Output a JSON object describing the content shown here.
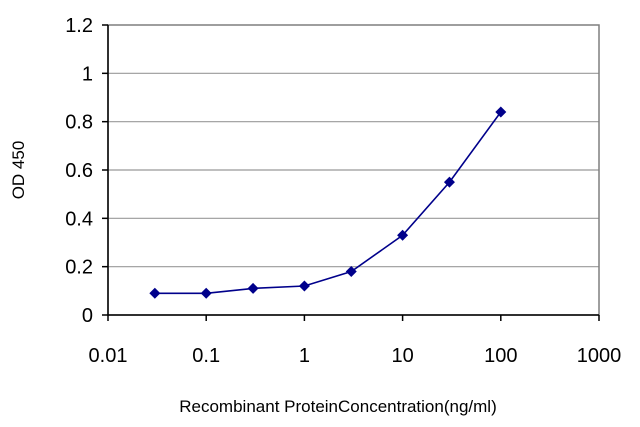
{
  "chart_data": {
    "type": "line",
    "title": "",
    "xlabel": "Recombinant ProteinConcentration(ng/ml)",
    "ylabel": "OD 450",
    "x_scale": "log",
    "xlim": [
      0.01,
      1000
    ],
    "ylim": [
      0,
      1.2
    ],
    "x_ticks": [
      0.01,
      0.1,
      1,
      10,
      100,
      1000
    ],
    "x_tick_labels": [
      "0.01",
      "0.1",
      "1",
      "10",
      "100",
      "1000"
    ],
    "y_ticks": [
      0,
      0.2,
      0.4,
      0.6,
      0.8,
      1,
      1.2
    ],
    "y_tick_labels": [
      "0",
      "0.2",
      "0.4",
      "0.6",
      "0.8",
      "1",
      "1.2"
    ],
    "grid": "horizontal",
    "legend": "none",
    "colors": {
      "series": "#00008b",
      "grid": "#999999",
      "axis": "#000000"
    },
    "series": [
      {
        "x": [
          0.03,
          0.1,
          0.3,
          1,
          3,
          10,
          30,
          100
        ],
        "y": [
          0.09,
          0.09,
          0.11,
          0.12,
          0.18,
          0.33,
          0.55,
          0.84
        ]
      }
    ]
  }
}
